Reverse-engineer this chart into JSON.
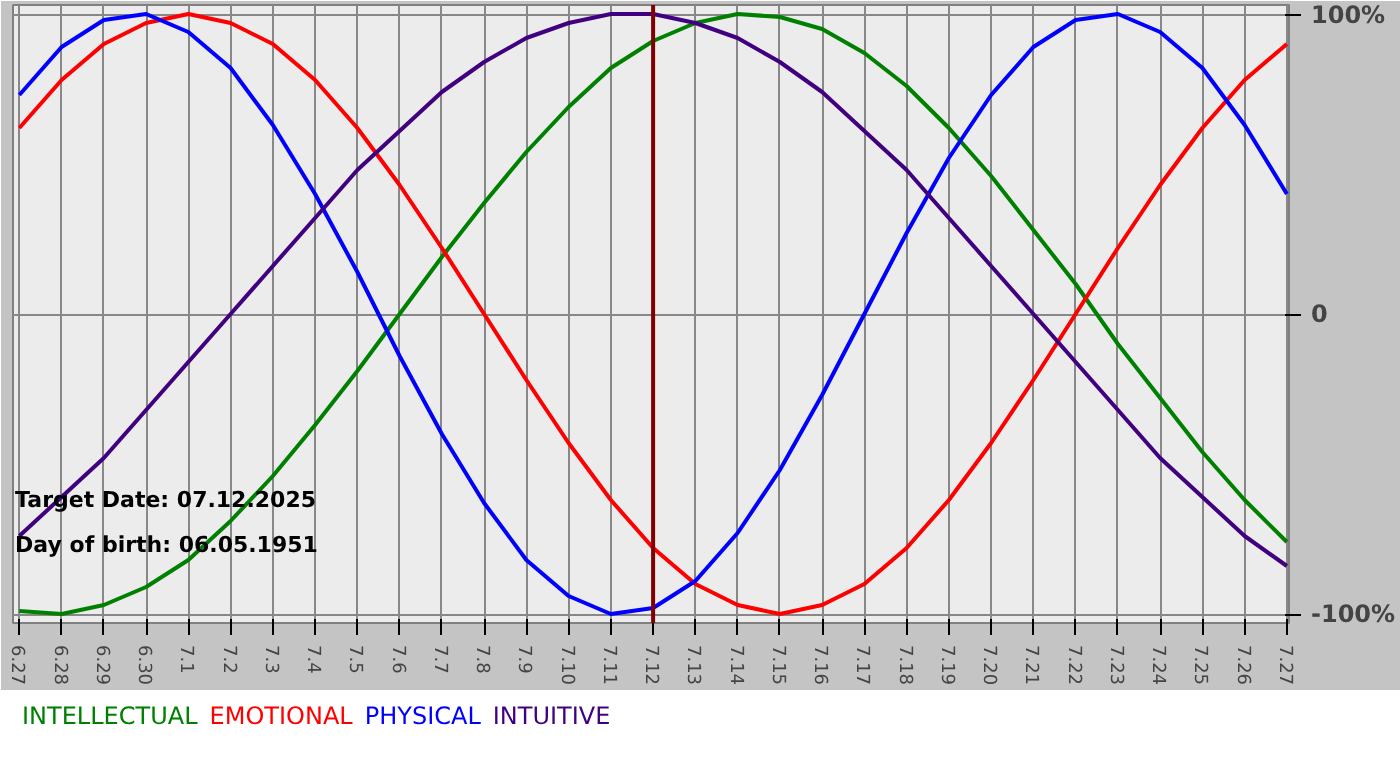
{
  "chart_data": {
    "type": "line",
    "categories": [
      "6.27",
      "6.28",
      "6.29",
      "6.30",
      "7.1",
      "7.2",
      "7.3",
      "7.4",
      "7.5",
      "7.6",
      "7.7",
      "7.8",
      "7.9",
      "7.10",
      "7.11",
      "7.12",
      "7.13",
      "7.14",
      "7.15",
      "7.16",
      "7.17",
      "7.18",
      "7.19",
      "7.20",
      "7.21",
      "7.22",
      "7.23",
      "7.24",
      "7.25",
      "7.26",
      "7.27"
    ],
    "series": [
      {
        "name": "INTELLECTUAL",
        "color": "#008000",
        "values": [
          -0.99,
          -1.0,
          -0.97,
          -0.91,
          -0.82,
          -0.69,
          -0.54,
          -0.37,
          -0.19,
          0,
          0.19,
          0.37,
          0.54,
          0.69,
          0.82,
          0.91,
          0.97,
          1.0,
          0.99,
          0.95,
          0.87,
          0.76,
          0.62,
          0.46,
          0.28,
          0.1,
          -0.1,
          -0.28,
          -0.46,
          -0.62,
          -0.76
        ]
      },
      {
        "name": "EMOTIONAL",
        "color": "#ff0000",
        "values": [
          0.62,
          0.78,
          0.9,
          0.97,
          1.0,
          0.97,
          0.9,
          0.78,
          0.62,
          0.43,
          0.22,
          0,
          -0.22,
          -0.43,
          -0.62,
          -0.78,
          -0.9,
          -0.97,
          -1.0,
          -0.97,
          -0.9,
          -0.78,
          -0.62,
          -0.43,
          -0.22,
          0,
          0.22,
          0.43,
          0.62,
          0.78,
          0.9
        ]
      },
      {
        "name": "PHYSICAL",
        "color": "#0000ff",
        "values": [
          0.73,
          0.89,
          0.98,
          1.0,
          0.94,
          0.82,
          0.63,
          0.4,
          0.14,
          -0.14,
          -0.4,
          -0.63,
          -0.82,
          -0.94,
          -1.0,
          -0.98,
          -0.89,
          -0.73,
          -0.52,
          -0.27,
          0,
          0.27,
          0.52,
          0.73,
          0.89,
          0.98,
          1.0,
          0.94,
          0.82,
          0.63,
          0.4
        ]
      },
      {
        "name": "INTUITIVE",
        "color": "#400080",
        "values": [
          -0.74,
          -0.61,
          -0.48,
          -0.32,
          -0.16,
          0,
          0.16,
          0.32,
          0.48,
          0.61,
          0.74,
          0.84,
          0.92,
          0.97,
          1.0,
          1.0,
          0.97,
          0.92,
          0.84,
          0.74,
          0.61,
          0.48,
          0.32,
          0.16,
          0,
          -0.16,
          -0.32,
          -0.48,
          -0.61,
          -0.74,
          -0.84
        ]
      }
    ],
    "ylim": [
      -1,
      1
    ],
    "yticks": [
      {
        "value": 1,
        "label": "100%"
      },
      0,
      {
        "value": -1,
        "label": "-100%"
      }
    ],
    "grid": true,
    "legend": "bottom",
    "marker": "none",
    "line_style": "solid",
    "ref_lines": [
      {
        "axis": "x",
        "value": "7.12",
        "color": "#800000"
      }
    ],
    "annotations": [
      "Target Date: 07.12.2025",
      "Day of birth: 06.05.1951"
    ]
  }
}
